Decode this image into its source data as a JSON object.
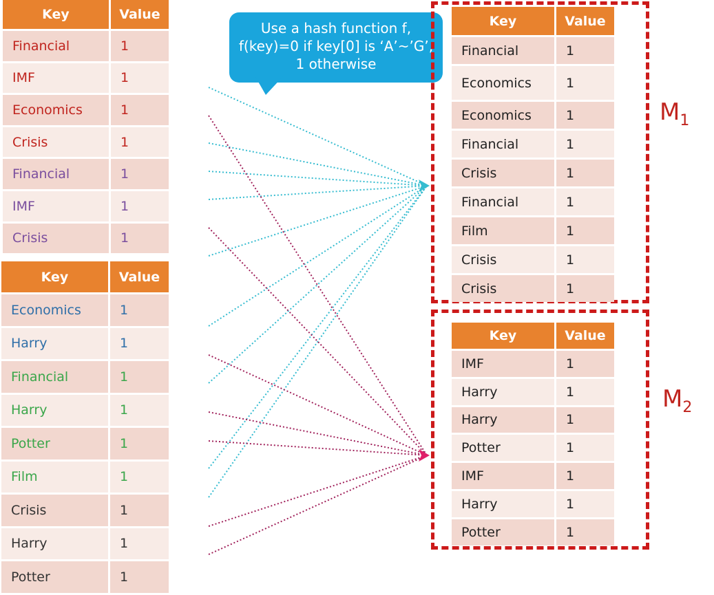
{
  "colors": {
    "header": "#e8822e",
    "row_odd": "#f2d7cf",
    "row_even": "#f8ebe6",
    "red": "#c0241e",
    "purple": "#7a4e9e",
    "blue": "#2f6fa8",
    "green": "#3aa64a",
    "dark": "#333333",
    "bubble": "#1aa5dc",
    "box": "#cc1a1a",
    "line_cyan": "#35bcd0",
    "line_maroon": "#a0205a",
    "arrow_pink": "#e0206a"
  },
  "input_table_1": {
    "key_header": "Key",
    "value_header": "Value",
    "rows": [
      {
        "key": "Financial",
        "value": "1",
        "color": "#c0241e"
      },
      {
        "key": "IMF",
        "value": "1",
        "color": "#c0241e"
      },
      {
        "key": "Economics",
        "value": "1",
        "color": "#c0241e"
      },
      {
        "key": "Crisis",
        "value": "1",
        "color": "#c0241e"
      },
      {
        "key": "Financial",
        "value": "1",
        "color": "#7a4e9e"
      },
      {
        "key": "IMF",
        "value": "1",
        "color": "#7a4e9e"
      },
      {
        "key": "Crisis",
        "value": "1",
        "color": "#7a4e9e"
      }
    ]
  },
  "input_table_2": {
    "key_header": "Key",
    "value_header": "Value",
    "rows": [
      {
        "key": "Economics",
        "value": "1",
        "color": "#2f6fa8"
      },
      {
        "key": "Harry",
        "value": "1",
        "color": "#2f6fa8"
      },
      {
        "key": "Financial",
        "value": "1",
        "color": "#3aa64a"
      },
      {
        "key": "Harry",
        "value": "1",
        "color": "#3aa64a"
      },
      {
        "key": "Potter",
        "value": "1",
        "color": "#3aa64a"
      },
      {
        "key": "Film",
        "value": "1",
        "color": "#3aa64a"
      },
      {
        "key": "Crisis",
        "value": "1",
        "color": "#333333"
      },
      {
        "key": "Harry",
        "value": "1",
        "color": "#333333"
      },
      {
        "key": "Potter",
        "value": "1",
        "color": "#333333"
      }
    ]
  },
  "bubble": {
    "line1": "Use a hash function f,",
    "line2": "f(key)=0  if key[0] is ‘A’~’G’,",
    "line3": "1  otherwise"
  },
  "output_m1": {
    "key_header": "Key",
    "value_header": "Value",
    "rows": [
      {
        "key": "Financial",
        "value": "1"
      },
      {
        "key": "Economics",
        "value": "1"
      },
      {
        "key": "Economics",
        "value": "1"
      },
      {
        "key": "Financial",
        "value": "1"
      },
      {
        "key": "Crisis",
        "value": "1"
      },
      {
        "key": "Financial",
        "value": "1"
      },
      {
        "key": "Film",
        "value": "1"
      },
      {
        "key": "Crisis",
        "value": "1"
      },
      {
        "key": "Crisis",
        "value": "1"
      }
    ]
  },
  "output_m2": {
    "key_header": "Key",
    "value_header": "Value",
    "rows": [
      {
        "key": "IMF",
        "value": "1"
      },
      {
        "key": "Harry",
        "value": "1"
      },
      {
        "key": "Harry",
        "value": "1"
      },
      {
        "key": "Potter",
        "value": "1"
      },
      {
        "key": "IMF",
        "value": "1"
      },
      {
        "key": "Harry",
        "value": "1"
      },
      {
        "key": "Potter",
        "value": "1"
      }
    ]
  },
  "labels": {
    "m1": "M",
    "m1_sub": "1",
    "m2": "M",
    "m2_sub": "2"
  }
}
